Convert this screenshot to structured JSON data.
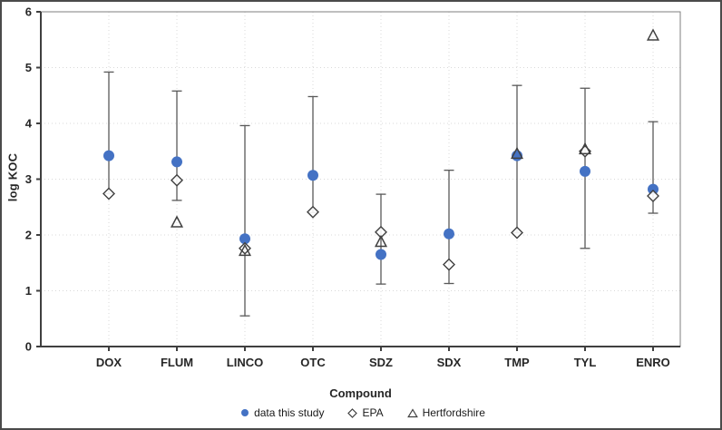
{
  "figure": {
    "y_axis_title": "log KOC",
    "x_axis_title": "Compound"
  },
  "colors": {
    "series_blue": "#4472C4",
    "open_marker_stroke": "#404040",
    "error_bar": "#595959",
    "gridline": "#D9D9D9",
    "axis_line": "#3F3F3F",
    "plot_border": "#7F7F7F",
    "tick_text": "#262626"
  },
  "chart_data": {
    "type": "scatter",
    "title": "",
    "xlabel": "Compound",
    "ylabel": "log KOC",
    "ylim": [
      0,
      6
    ],
    "yticks": [
      0,
      1,
      2,
      3,
      4,
      5,
      6
    ],
    "grid": true,
    "gridline_style": "dotted",
    "legend_position": "bottom",
    "categories": [
      "DOX",
      "FLUM",
      "LINCO",
      "OTC",
      "SDZ",
      "SDX",
      "TMP",
      "TYL",
      "ENRO"
    ],
    "series": [
      {
        "name": "data this study",
        "marker": "circle-filled",
        "color": "#4472C4",
        "values": [
          3.42,
          3.31,
          1.93,
          3.07,
          1.65,
          2.02,
          3.42,
          3.14,
          2.82
        ],
        "error_low": [
          2.74,
          2.62,
          0.55,
          2.4,
          1.12,
          1.13,
          2.04,
          1.76,
          2.39
        ],
        "error_high": [
          4.92,
          4.58,
          3.96,
          4.48,
          2.73,
          3.16,
          4.68,
          4.63,
          4.03
        ]
      },
      {
        "name": "EPA",
        "marker": "diamond-open",
        "color": "#404040",
        "values": [
          2.74,
          2.98,
          1.76,
          2.41,
          2.05,
          1.47,
          2.04,
          3.5,
          2.7
        ]
      },
      {
        "name": "Hertfordshire",
        "marker": "triangle-open",
        "color": "#404040",
        "values": [
          null,
          2.22,
          1.71,
          null,
          1.87,
          null,
          3.45,
          3.53,
          5.57
        ]
      }
    ]
  }
}
